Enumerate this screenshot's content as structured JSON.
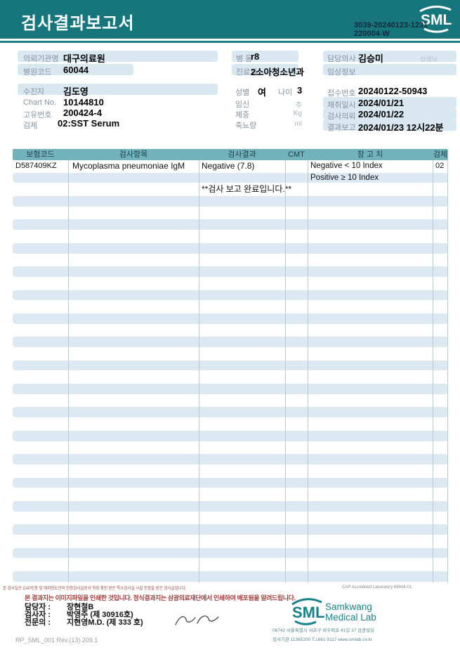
{
  "colors": {
    "band_teal": "#16767c",
    "table_header_teal": "#72b3bb",
    "stripe_blue": "#dde9f2",
    "pill_blue": "#d9e7f1",
    "label_gray": "#84939f",
    "notice_maroon": "#a03c3c",
    "logo_teal": "#1b8188"
  },
  "header": {
    "title": "검사결과보고서",
    "logo_text": "SML",
    "report_no1": "3039-20240123-1231",
    "report_no2": "220004-W"
  },
  "info": {
    "client_label": "의뢰기관명",
    "client": "대구의료원",
    "hospital_code_label": "병원코드",
    "hospital_code": "60044",
    "patient_label": "수진자",
    "patient": "김도영",
    "chart_label": "Chart No.",
    "chart": "10144810",
    "uid_label": "고유번호",
    "uid": "200424-4",
    "specimen_label": "검체",
    "specimen": "02:SST Serum",
    "ward_label": "병 동",
    "ward": "r8",
    "dept_label": "진료과",
    "dept": "2소아청소년과",
    "sex_label": "성별",
    "sex": "여",
    "age_label": "나이",
    "age": "3",
    "pregnancy_label": "임신",
    "pregnancy_unit": "주",
    "weight_label": "체중",
    "weight_unit": "Kg",
    "urine_label": "축뇨량",
    "urine_unit": "ml",
    "doctor_label": "담당의사",
    "doctor": "김승미",
    "doctor_suffix": "선생님",
    "clinical_label": "임상정보",
    "receipt_label": "접수번호",
    "receipt_no": "20240122-50943",
    "collected_label": "채취일시",
    "collected": "2024/01/21",
    "requested_label": "검사의뢰",
    "requested": "2024/01/22",
    "reported_label": "결과보고",
    "reported": "2024/01/23 12시22분"
  },
  "table": {
    "headers": [
      "보험코드",
      "검사항목",
      "검사결과",
      "CMT",
      "참 고 치",
      "검체"
    ],
    "rows": [
      {
        "code": "D587409KZ",
        "item": "Mycoplasma pneumoniae IgM",
        "result": "Negative (7.8)",
        "cmt": "",
        "ref": "Negative < 10 Index",
        "spec": "02"
      },
      {
        "code": "",
        "item": "",
        "result": "",
        "cmt": "",
        "ref": "Positive ≥ 10 Index",
        "spec": ""
      },
      {
        "code": "",
        "item": "",
        "result": "**검사  보고  완료입니다.**",
        "cmt": "",
        "ref": "",
        "spec": ""
      }
    ],
    "empty_rows": 33
  },
  "footer": {
    "accreditation_note": "본 검사실은 CAP인증 및 해외정도관리 인증검사실로서 학회 확인 받은 특수검사실 시설 인증을 받은 검사실입니다.",
    "cap_line": "CAP Accredited Laboratory 69944-01",
    "notice": "본 결과지는 이미지파일을 인쇄한 것입니다. 정식결과지는 삼광의료재단에서 인쇄하여 배포됨을 알려드립니다.",
    "staff": [
      {
        "label": "담당자 :",
        "name": "장현철B"
      },
      {
        "label": "검사자 :",
        "name": "박영주 (제 30916호)"
      },
      {
        "label": "전문의 :",
        "name": "지현영M.D. (제 333 호)"
      }
    ],
    "logo_text": "SML",
    "logo_name1": "Samkwang",
    "logo_name2": "Medical Lab",
    "address": "06742 서울특별시 서초구 바우뫼로 41길 37 삼광빌딩",
    "contact": "검사기관 11365200 T.1661-5117 www.smlab.co.kr",
    "doc_code": "RP_SML_001 Rev.(13) 209.1"
  }
}
